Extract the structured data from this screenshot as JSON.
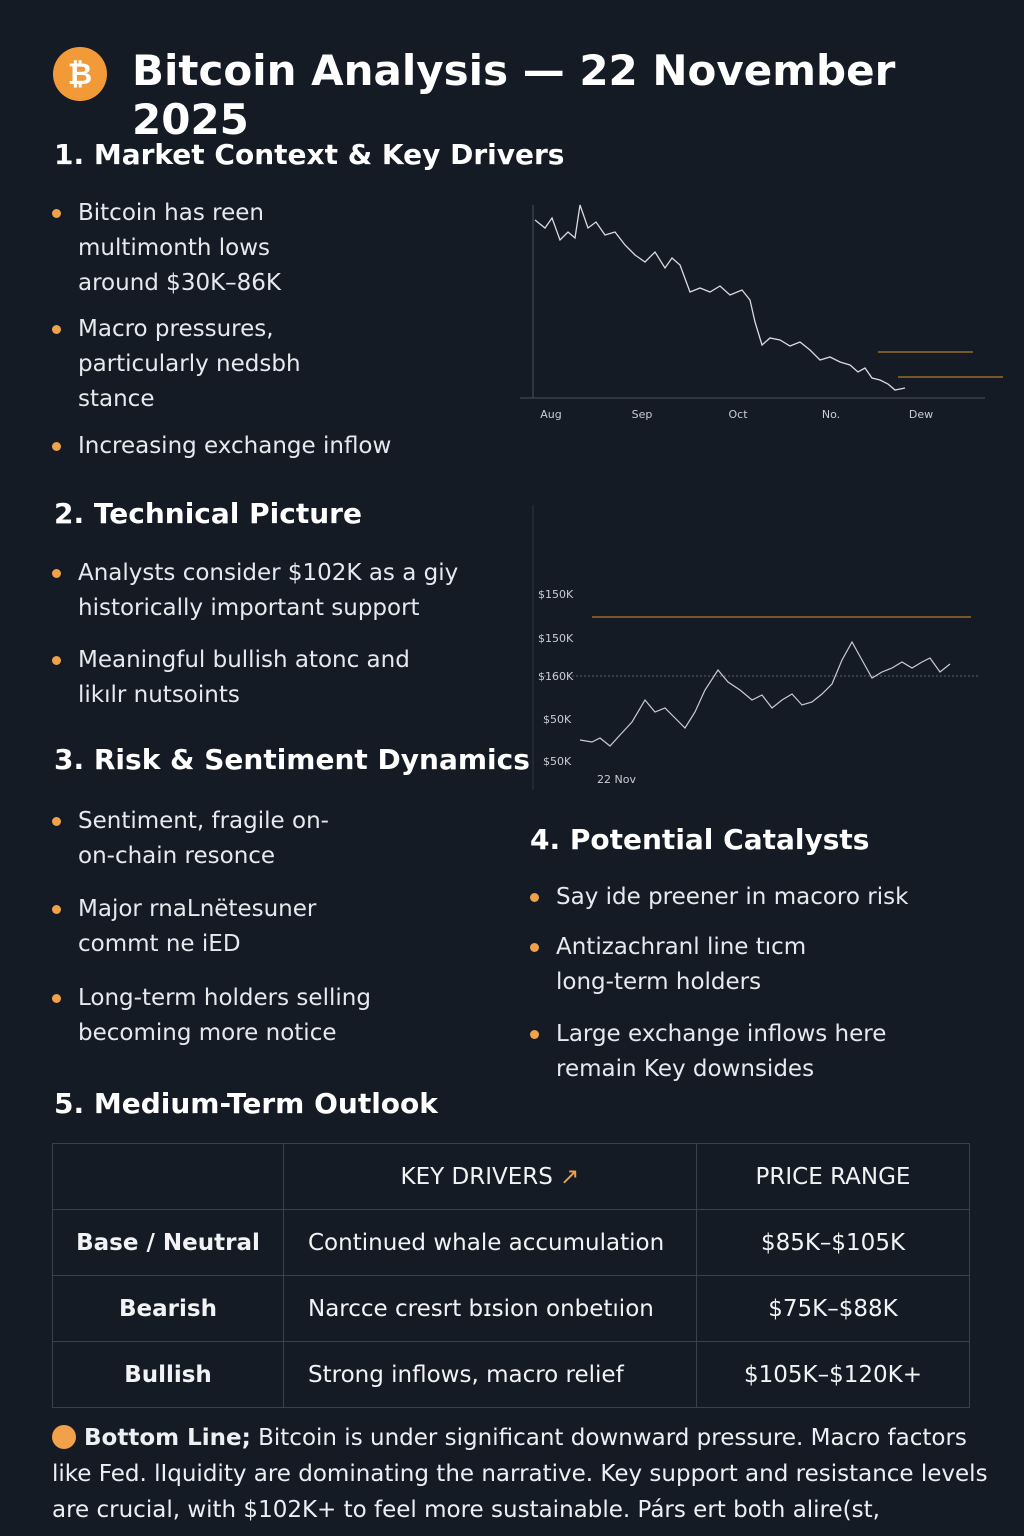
{
  "header": {
    "title": "Bitcoin Analysis — 22 November 2025"
  },
  "sections": {
    "market": {
      "heading": "1. Market Context & Key Drivers",
      "bullets": [
        "Bitcoin has reen multimonth lows around $30K–86K",
        "Macro pressures, particularly nedsbh stance",
        "Increasing exchange inflow"
      ]
    },
    "technical": {
      "heading": "2. Technical Picture",
      "bullets": [
        "Analysts consider $102K as a giy historically important support",
        "Meaningful bullish atonc and likılr nutsoints"
      ]
    },
    "risk": {
      "heading": "3. Risk & Sentiment Dynamics",
      "bullets": [
        "Sentiment, fragile on-on-chain resonce",
        "Major rnaLnëtesuner commt ne iED",
        "Long-term holders selling becoming more notice"
      ]
    },
    "catalysts": {
      "heading": "4. Potential Catalysts",
      "bullets": [
        "Say ide preener in macoro risk",
        "Antizachranl line tıcm long-term holders",
        "Large exchange inflows here remain Key downsides"
      ]
    }
  },
  "chart_top": {
    "x_labels": [
      "Aug",
      "Sep",
      "Oct",
      "No.",
      "Dew"
    ]
  },
  "chart_bottom": {
    "y_labels": [
      "$150K",
      "$150K",
      "$160K",
      "$50K",
      "$50K"
    ],
    "x_label": "22 Nov"
  },
  "outlook": {
    "heading": "5. Medium-Term Outlook",
    "table": {
      "header": [
        "KEY DRIVERS",
        "PRICE RANGE"
      ],
      "rows": [
        [
          "Base / Neutral",
          "Continued whale accumulation",
          "$85K–$105K"
        ],
        [
          "Bearish",
          "Narcce cresrt bɪsion onbetıion",
          "$75K–$88K"
        ],
        [
          "Bullish",
          "Strong inflows, macro relief",
          "$105K–$120K+"
        ]
      ]
    }
  },
  "bottom_line": {
    "label": "Bottom Line;",
    "text": "Bitcoin is under significant downward pressure. Macro factors like Fed. lIquidity are dominating the narrative. Key support and resistance levels are crucial, with $102K+ to feel more sustainable. Párs ert both alire(st,"
  }
}
